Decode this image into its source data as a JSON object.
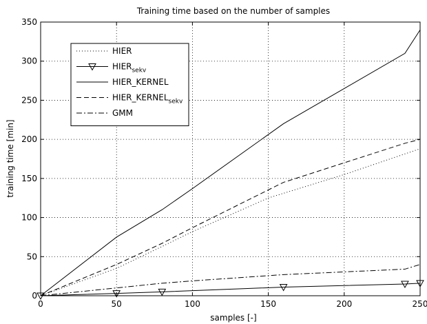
{
  "chart_data": {
    "type": "line",
    "title": "Training time based on the number of samples",
    "xlabel": "samples [-]",
    "ylabel": "training time [min]",
    "xlim": [
      0,
      250
    ],
    "ylim": [
      0,
      350
    ],
    "xticks": [
      0,
      50,
      100,
      150,
      200,
      250
    ],
    "yticks": [
      0,
      50,
      100,
      150,
      200,
      250,
      300,
      350
    ],
    "grid": true,
    "legend_position": "top-left",
    "series": [
      {
        "name": "HIER",
        "style": "dotted",
        "marker": "none",
        "x": [
          0,
          50,
          80,
          100,
          150,
          200,
          250
        ],
        "y": [
          0,
          35,
          63,
          82,
          125,
          155,
          188
        ]
      },
      {
        "name": "HIER",
        "name_sub": "sekv",
        "style": "solid",
        "marker": "triangle-down",
        "x": [
          0,
          50,
          80,
          160,
          240,
          250
        ],
        "y": [
          0,
          3,
          5,
          11,
          15,
          16
        ]
      },
      {
        "name": "HIER_KERNEL",
        "style": "solid",
        "marker": "none",
        "x": [
          0,
          50,
          80,
          100,
          160,
          240,
          250
        ],
        "y": [
          0,
          75,
          110,
          137,
          220,
          310,
          340
        ]
      },
      {
        "name": "HIER_KERNEL",
        "name_sub": "sekv",
        "style": "dashed",
        "marker": "none",
        "x": [
          0,
          50,
          80,
          100,
          160,
          240,
          250
        ],
        "y": [
          0,
          40,
          67,
          87,
          145,
          195,
          200
        ]
      },
      {
        "name": "GMM",
        "style": "dashdot",
        "marker": "none",
        "x": [
          0,
          50,
          80,
          100,
          160,
          240,
          250
        ],
        "y": [
          0,
          10,
          16,
          19,
          27,
          34,
          40
        ]
      }
    ]
  }
}
